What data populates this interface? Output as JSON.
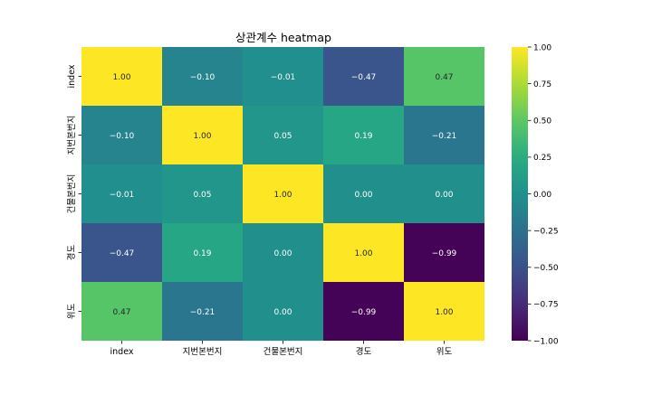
{
  "chart_data": {
    "type": "heatmap",
    "title": "상관계수 heatmap",
    "xlabel": "",
    "ylabel": "",
    "x_categories": [
      "index",
      "지번본번지",
      "건물본번지",
      "경도",
      "위도"
    ],
    "y_categories": [
      "index",
      "지번본번지",
      "건물본번지",
      "경도",
      "위도"
    ],
    "values": [
      [
        1.0,
        -0.1,
        -0.01,
        -0.47,
        0.47
      ],
      [
        -0.1,
        1.0,
        0.05,
        0.19,
        -0.21
      ],
      [
        -0.01,
        0.05,
        1.0,
        0.0,
        0.0
      ],
      [
        -0.47,
        0.19,
        0.0,
        1.0,
        -0.99
      ],
      [
        0.47,
        -0.21,
        0.0,
        -0.99,
        1.0
      ]
    ],
    "annotation_format": "0.00",
    "colormap": "viridis",
    "vmin": -1.0,
    "vmax": 1.0,
    "colorbar_ticks": [
      1.0,
      0.75,
      0.5,
      0.25,
      0.0,
      -0.25,
      -0.5,
      -0.75,
      -1.0
    ],
    "colorbar_ticks_text": [
      "1.00",
      "0.75",
      "0.50",
      "0.25",
      "0.00",
      "−0.25",
      "−0.50",
      "−0.75",
      "−1.00"
    ],
    "grid": false
  }
}
